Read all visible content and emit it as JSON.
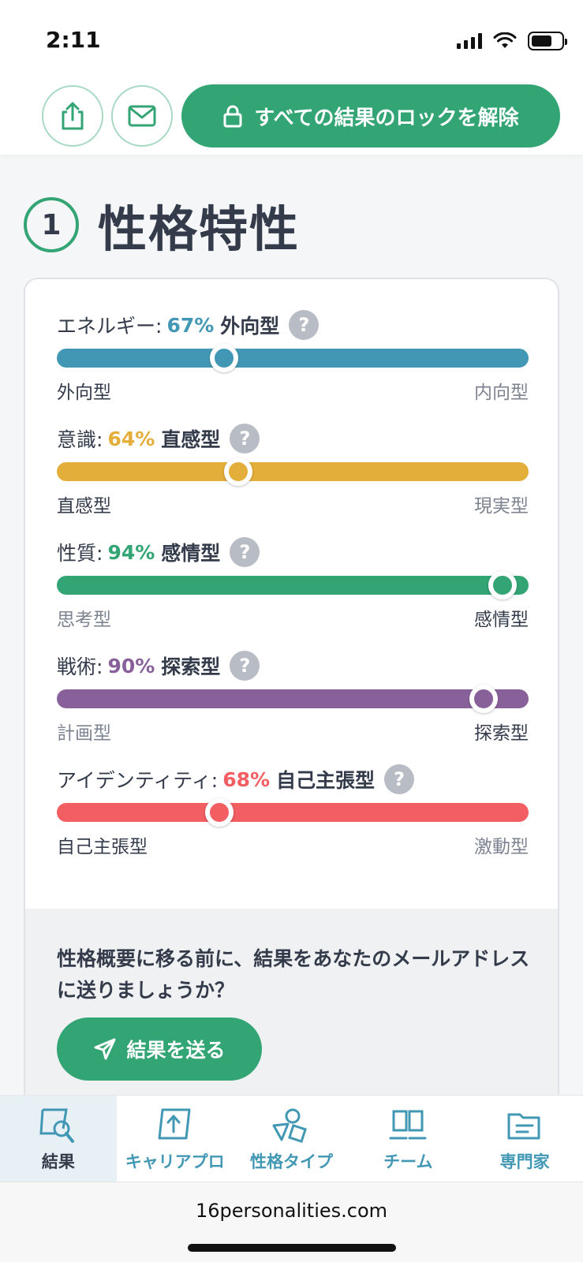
{
  "status": {
    "time": "2:11"
  },
  "toolbar": {
    "unlock_label": "すべての結果のロックを解除",
    "icons": [
      "share-icon",
      "mail-icon",
      "lock-icon"
    ]
  },
  "section": {
    "number": "1",
    "title": "性格特性"
  },
  "traits": [
    {
      "category": "エネルギー:",
      "percent": "67%",
      "type": "外向型",
      "left": "外向型",
      "right": "内向型",
      "color": "#4298b4",
      "value": 0.355,
      "dominant": "left"
    },
    {
      "category": "意識:",
      "percent": "64%",
      "type": "直感型",
      "left": "直感型",
      "right": "現実型",
      "color": "#e4ae3a",
      "value": 0.385,
      "dominant": "left"
    },
    {
      "category": "性質:",
      "percent": "94%",
      "type": "感情型",
      "left": "思考型",
      "right": "感情型",
      "color": "#33a474",
      "value": 0.945,
      "dominant": "right"
    },
    {
      "category": "戦術:",
      "percent": "90%",
      "type": "探索型",
      "left": "計画型",
      "right": "探索型",
      "color": "#88619a",
      "value": 0.905,
      "dominant": "right"
    },
    {
      "category": "アイデンティティ:",
      "percent": "68%",
      "type": "自己主張型",
      "left": "自己主張型",
      "right": "激動型",
      "color": "#f25e62",
      "value": 0.345,
      "dominant": "left"
    }
  ],
  "email_prompt": {
    "text": "性格概要に移る前に、結果をあなたのメールアドレスに送りましょうか？",
    "button": "結果を送る"
  },
  "nav": [
    {
      "label": "結果",
      "icon": "results-icon",
      "active": true
    },
    {
      "label": "キャリアプロ",
      "icon": "career-icon",
      "active": false
    },
    {
      "label": "性格タイプ",
      "icon": "types-icon",
      "active": false
    },
    {
      "label": "チーム",
      "icon": "team-icon",
      "active": false
    },
    {
      "label": "専門家",
      "icon": "experts-icon",
      "active": false
    }
  ],
  "browser": {
    "url": "16personalities.com"
  },
  "colors": {
    "accent": "#33a474",
    "text": "#343c4b",
    "nav": "#4298b4"
  }
}
